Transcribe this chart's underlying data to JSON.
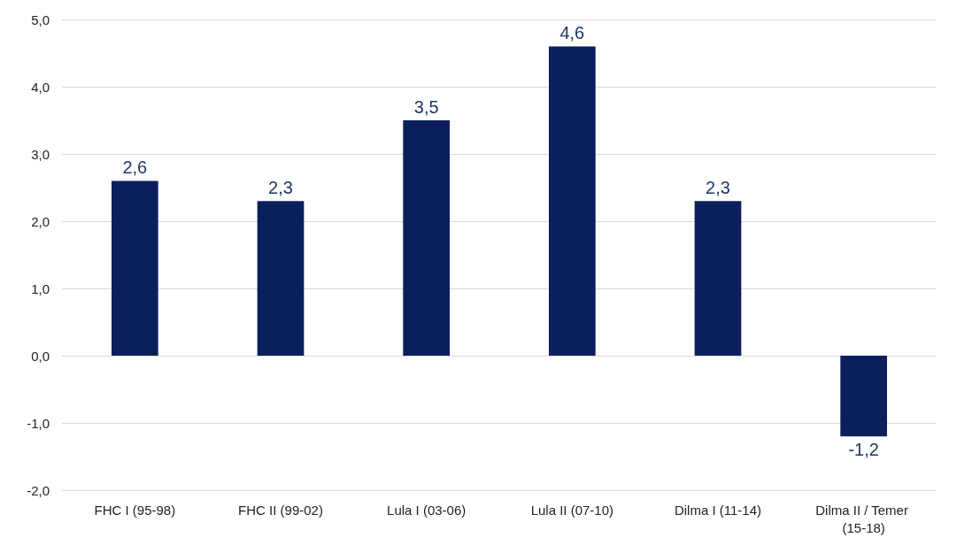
{
  "chart_data": {
    "type": "bar",
    "categories": [
      "FHC I (95-98)",
      "FHC II (99-02)",
      "Lula I (03-06)",
      "Lula II (07-10)",
      "Dilma I (11-14)",
      "Dilma II / Temer (15-18)"
    ],
    "values": [
      2.6,
      2.3,
      3.5,
      4.6,
      2.3,
      -1.2
    ],
    "value_labels": [
      "2,6",
      "2,3",
      "3,5",
      "4,6",
      "2,3",
      "-1,2"
    ],
    "color": "#0b1f5c",
    "ylim": [
      -2,
      5
    ],
    "yticks": [
      {
        "value": -2,
        "label": "-2,0"
      },
      {
        "value": -1,
        "label": "-1,0"
      },
      {
        "value": 0,
        "label": "0,0"
      },
      {
        "value": 1,
        "label": "1,0"
      },
      {
        "value": 2,
        "label": "2,0"
      },
      {
        "value": 3,
        "label": "3,0"
      },
      {
        "value": 4,
        "label": "4,0"
      },
      {
        "value": 5,
        "label": "5,0"
      }
    ],
    "grid": "y"
  }
}
